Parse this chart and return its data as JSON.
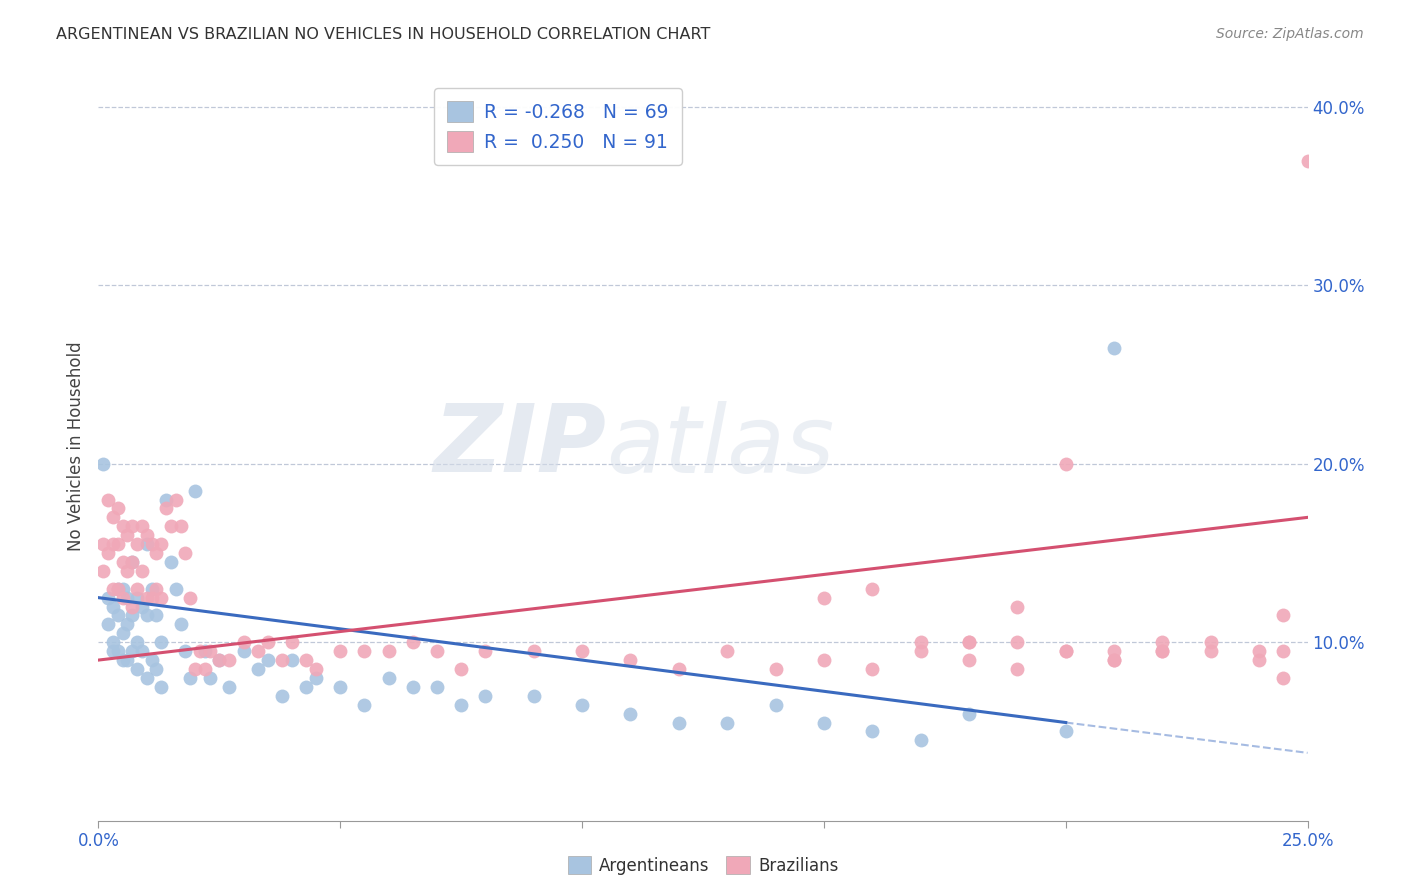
{
  "title": "ARGENTINEAN VS BRAZILIAN NO VEHICLES IN HOUSEHOLD CORRELATION CHART",
  "source": "Source: ZipAtlas.com",
  "ylabel": "No Vehicles in Household",
  "xlabel_argentineans": "Argentineans",
  "xlabel_brazilians": "Brazilians",
  "xlim": [
    0.0,
    0.25
  ],
  "ylim": [
    0.0,
    0.42
  ],
  "xtick_labels_ends": [
    "0.0%",
    "25.0%"
  ],
  "ytick_labels": [
    "10.0%",
    "20.0%",
    "30.0%",
    "40.0%"
  ],
  "ytick_vals": [
    0.1,
    0.2,
    0.3,
    0.4
  ],
  "argentinean_color": "#a8c4e0",
  "brazilian_color": "#f0a8b8",
  "argentinean_line_color": "#3a6abf",
  "brazilian_line_color": "#d45070",
  "r_argentinean": -0.268,
  "n_argentinean": 69,
  "r_brazilian": 0.25,
  "n_brazilian": 91,
  "legend_r_color": "#3366cc",
  "watermark_zip": "ZIP",
  "watermark_atlas": "atlas",
  "arg_line_x0": 0.0,
  "arg_line_y0": 0.125,
  "arg_line_x1": 0.2,
  "arg_line_y1": 0.055,
  "arg_line_dash_x1": 0.25,
  "arg_line_dash_y1": 0.038,
  "bra_line_x0": 0.0,
  "bra_line_y0": 0.09,
  "bra_line_x1": 0.25,
  "bra_line_y1": 0.17,
  "argentinean_x": [
    0.001,
    0.002,
    0.002,
    0.003,
    0.003,
    0.003,
    0.004,
    0.004,
    0.004,
    0.005,
    0.005,
    0.005,
    0.006,
    0.006,
    0.006,
    0.007,
    0.007,
    0.007,
    0.008,
    0.008,
    0.008,
    0.009,
    0.009,
    0.01,
    0.01,
    0.01,
    0.011,
    0.011,
    0.012,
    0.012,
    0.013,
    0.013,
    0.014,
    0.015,
    0.016,
    0.017,
    0.018,
    0.019,
    0.02,
    0.022,
    0.023,
    0.025,
    0.027,
    0.03,
    0.033,
    0.035,
    0.038,
    0.04,
    0.043,
    0.045,
    0.05,
    0.055,
    0.06,
    0.065,
    0.07,
    0.075,
    0.08,
    0.09,
    0.1,
    0.11,
    0.12,
    0.13,
    0.14,
    0.15,
    0.16,
    0.17,
    0.18,
    0.2,
    0.21
  ],
  "argentinean_y": [
    0.2,
    0.125,
    0.11,
    0.12,
    0.1,
    0.095,
    0.13,
    0.115,
    0.095,
    0.13,
    0.105,
    0.09,
    0.125,
    0.11,
    0.09,
    0.145,
    0.115,
    0.095,
    0.125,
    0.1,
    0.085,
    0.12,
    0.095,
    0.155,
    0.115,
    0.08,
    0.13,
    0.09,
    0.115,
    0.085,
    0.1,
    0.075,
    0.18,
    0.145,
    0.13,
    0.11,
    0.095,
    0.08,
    0.185,
    0.095,
    0.08,
    0.09,
    0.075,
    0.095,
    0.085,
    0.09,
    0.07,
    0.09,
    0.075,
    0.08,
    0.075,
    0.065,
    0.08,
    0.075,
    0.075,
    0.065,
    0.07,
    0.07,
    0.065,
    0.06,
    0.055,
    0.055,
    0.065,
    0.055,
    0.05,
    0.045,
    0.06,
    0.05,
    0.265
  ],
  "brazilian_x": [
    0.001,
    0.001,
    0.002,
    0.002,
    0.003,
    0.003,
    0.003,
    0.004,
    0.004,
    0.004,
    0.005,
    0.005,
    0.005,
    0.006,
    0.006,
    0.007,
    0.007,
    0.007,
    0.008,
    0.008,
    0.009,
    0.009,
    0.01,
    0.01,
    0.011,
    0.011,
    0.012,
    0.012,
    0.013,
    0.013,
    0.014,
    0.015,
    0.016,
    0.017,
    0.018,
    0.019,
    0.02,
    0.021,
    0.022,
    0.023,
    0.025,
    0.027,
    0.03,
    0.033,
    0.035,
    0.038,
    0.04,
    0.043,
    0.045,
    0.05,
    0.055,
    0.06,
    0.065,
    0.07,
    0.075,
    0.08,
    0.09,
    0.1,
    0.11,
    0.12,
    0.13,
    0.14,
    0.15,
    0.16,
    0.17,
    0.18,
    0.19,
    0.2,
    0.21,
    0.22,
    0.23,
    0.24,
    0.245,
    0.15,
    0.16,
    0.17,
    0.18,
    0.19,
    0.2,
    0.21,
    0.22,
    0.23,
    0.24,
    0.245,
    0.18,
    0.19,
    0.2,
    0.21,
    0.22,
    0.245,
    0.25
  ],
  "brazilian_y": [
    0.155,
    0.14,
    0.18,
    0.15,
    0.17,
    0.155,
    0.13,
    0.175,
    0.155,
    0.13,
    0.165,
    0.145,
    0.125,
    0.16,
    0.14,
    0.165,
    0.145,
    0.12,
    0.155,
    0.13,
    0.165,
    0.14,
    0.16,
    0.125,
    0.155,
    0.125,
    0.15,
    0.13,
    0.155,
    0.125,
    0.175,
    0.165,
    0.18,
    0.165,
    0.15,
    0.125,
    0.085,
    0.095,
    0.085,
    0.095,
    0.09,
    0.09,
    0.1,
    0.095,
    0.1,
    0.09,
    0.1,
    0.09,
    0.085,
    0.095,
    0.095,
    0.095,
    0.1,
    0.095,
    0.085,
    0.095,
    0.095,
    0.095,
    0.09,
    0.085,
    0.095,
    0.085,
    0.09,
    0.085,
    0.095,
    0.09,
    0.12,
    0.2,
    0.095,
    0.095,
    0.1,
    0.095,
    0.115,
    0.125,
    0.13,
    0.1,
    0.1,
    0.1,
    0.095,
    0.09,
    0.095,
    0.095,
    0.09,
    0.095,
    0.1,
    0.085,
    0.095,
    0.09,
    0.1,
    0.08,
    0.37
  ]
}
